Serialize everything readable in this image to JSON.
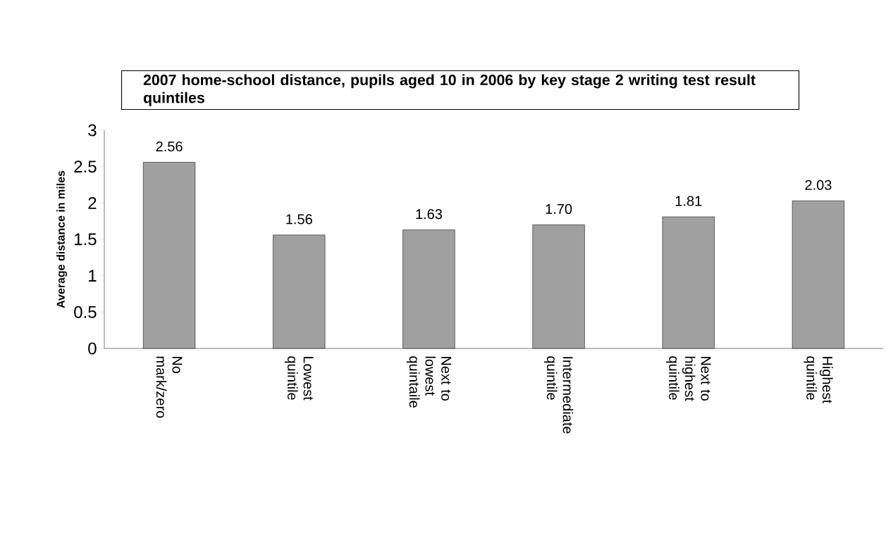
{
  "chart_data": {
    "type": "bar",
    "title": "2007 home-school distance, pupils aged 10 in 2006 by key stage 2 writing test result quintiles",
    "ylabel": "Average distance in miles",
    "categories": [
      "No mark/zero",
      "Lowest quintile",
      "Next to lowest quintaile",
      "Intermediate quintile",
      "Next to highest quintile",
      "Highest quintile"
    ],
    "values": [
      2.56,
      1.56,
      1.63,
      1.7,
      1.81,
      2.03
    ],
    "value_labels": [
      "2.56",
      "1.56",
      "1.63",
      "1.70",
      "1.81",
      "2.03"
    ],
    "color": "#a0a0a0",
    "ylim": [
      0,
      3
    ],
    "yticks": [
      0,
      0.5,
      1,
      1.5,
      2,
      2.5,
      3
    ],
    "grid": false
  }
}
